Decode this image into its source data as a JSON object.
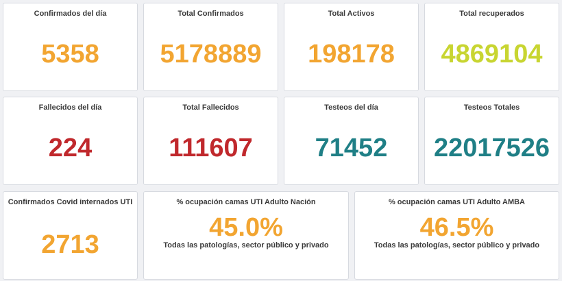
{
  "colors": {
    "orange": "#f2a531",
    "lime": "#c8d531",
    "red": "#c0282c",
    "teal": "#1f7f86"
  },
  "row1": {
    "confirmados_dia": {
      "title": "Confirmados del día",
      "value": "5358"
    },
    "total_confirmados": {
      "title": "Total Confirmados",
      "value": "5178889"
    },
    "total_activos": {
      "title": "Total Activos",
      "value": "198178"
    },
    "total_recuperados": {
      "title": "Total recuperados",
      "value": "4869104"
    }
  },
  "row2": {
    "fallecidos_dia": {
      "title": "Fallecidos del día",
      "value": "224"
    },
    "total_fallecidos": {
      "title": "Total Fallecidos",
      "value": "111607"
    },
    "testeos_dia": {
      "title": "Testeos del día",
      "value": "71452"
    },
    "testeos_totales": {
      "title": "Testeos Totales",
      "value": "22017526"
    }
  },
  "row3": {
    "internados_uti": {
      "title": "Confirmados Covid internados UTI",
      "value": "2713"
    },
    "ocupacion_nacion": {
      "title": "% ocupación camas UTI Adulto Nación",
      "value": "45.0%",
      "subtitle": "Todas las patologías, sector público y privado"
    },
    "ocupacion_amba": {
      "title": "% ocupación camas UTI Adulto AMBA",
      "value": "46.5%",
      "subtitle": "Todas las patologías, sector público y privado"
    }
  }
}
